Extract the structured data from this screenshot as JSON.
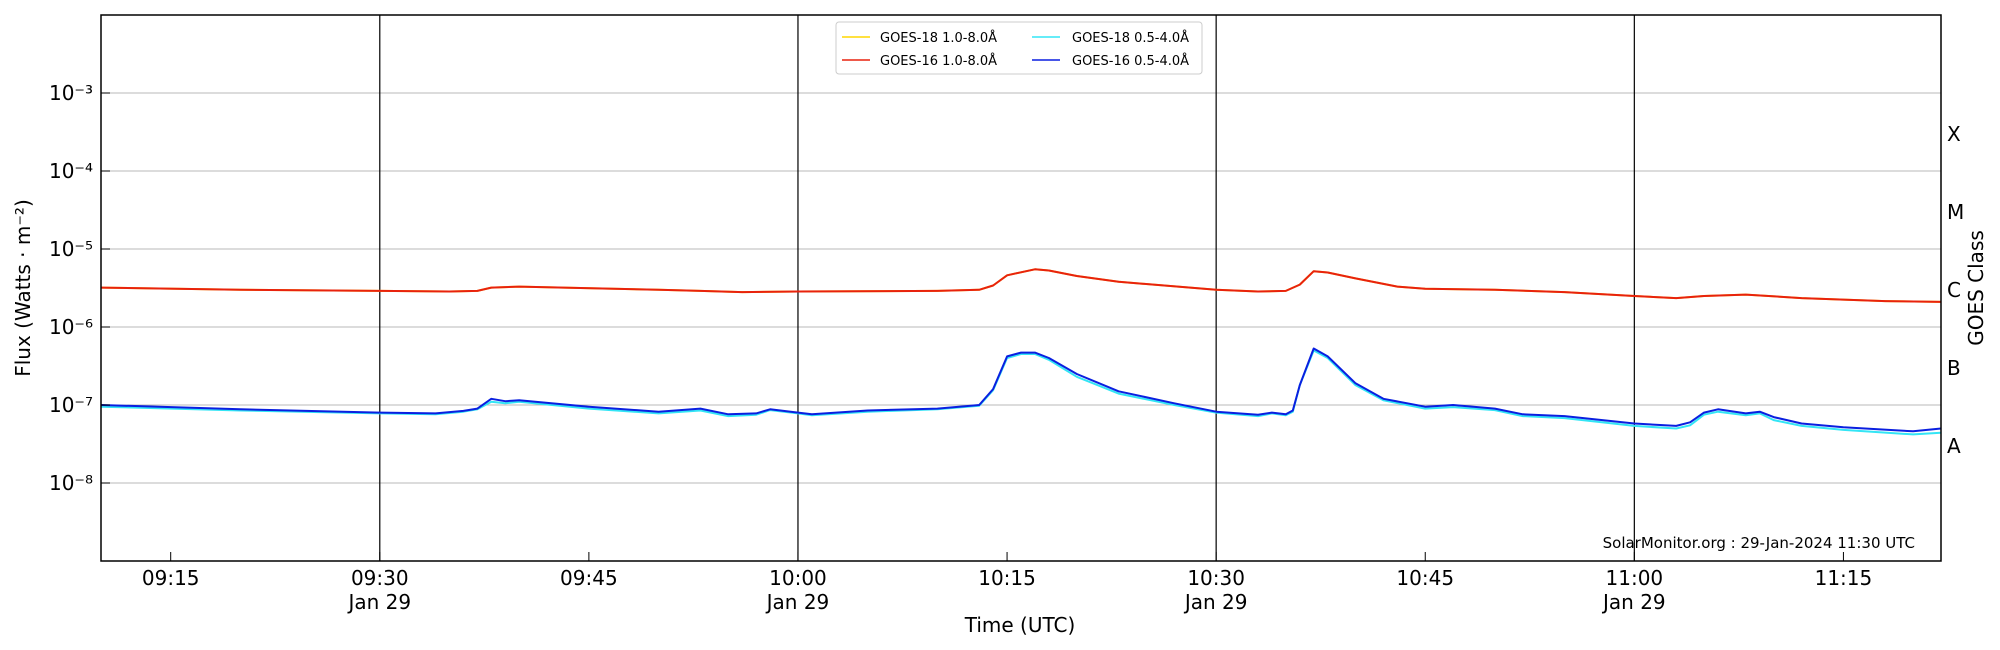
{
  "chart_data": {
    "type": "line",
    "xlabel": "Time (UTC)",
    "ylabel": "Flux (Watts · m⁻²)",
    "ylabel_right": "GOES Class",
    "y_scale": "log",
    "ylim": [
      1e-09,
      0.01
    ],
    "xlim": [
      "09:10",
      "11:22"
    ],
    "x_ticks": [
      {
        "t": "09:15",
        "label": "09:15",
        "sub": ""
      },
      {
        "t": "09:30",
        "label": "09:30",
        "sub": "Jan 29"
      },
      {
        "t": "09:45",
        "label": "09:45",
        "sub": ""
      },
      {
        "t": "10:00",
        "label": "10:00",
        "sub": "Jan 29"
      },
      {
        "t": "10:15",
        "label": "10:15",
        "sub": ""
      },
      {
        "t": "10:30",
        "label": "10:30",
        "sub": "Jan 29"
      },
      {
        "t": "10:45",
        "label": "10:45",
        "sub": ""
      },
      {
        "t": "11:00",
        "label": "11:00",
        "sub": "Jan 29"
      },
      {
        "t": "11:15",
        "label": "11:15",
        "sub": ""
      }
    ],
    "y_ticks": [
      {
        "exp": -3,
        "label": "10⁻³"
      },
      {
        "exp": -4,
        "label": "10⁻⁴"
      },
      {
        "exp": -5,
        "label": "10⁻⁵"
      },
      {
        "exp": -6,
        "label": "10⁻⁶"
      },
      {
        "exp": -7,
        "label": "10⁻⁷"
      },
      {
        "exp": -8,
        "label": "10⁻⁸"
      }
    ],
    "vertical_lines": [
      "09:30",
      "10:00",
      "10:30",
      "11:00"
    ],
    "goes_classes": [
      {
        "label": "X",
        "level": 0.0003
      },
      {
        "label": "M",
        "level": 3e-05
      },
      {
        "label": "C",
        "level": 3e-06
      },
      {
        "label": "B",
        "level": 3e-07
      },
      {
        "label": "A",
        "level": 3e-08
      }
    ],
    "legend": {
      "position": "top-center"
    },
    "series": [
      {
        "name": "GOES-18 1.0-8.0Å",
        "color": "#ffd700",
        "points": [
          [
            "09:10",
            3.2e-06
          ],
          [
            "09:20",
            3e-06
          ],
          [
            "09:30",
            2.9e-06
          ],
          [
            "09:35",
            2.85e-06
          ],
          [
            "09:37",
            2.9e-06
          ],
          [
            "09:38",
            3.2e-06
          ],
          [
            "09:40",
            3.3e-06
          ],
          [
            "09:50",
            3e-06
          ],
          [
            "09:53",
            2.9e-06
          ],
          [
            "09:56",
            2.8e-06
          ],
          [
            "10:00",
            2.85e-06
          ],
          [
            "10:10",
            2.9e-06
          ],
          [
            "10:13",
            3e-06
          ],
          [
            "10:14",
            3.4e-06
          ],
          [
            "10:15",
            4.6e-06
          ],
          [
            "10:17",
            5.5e-06
          ],
          [
            "10:18",
            5.3e-06
          ],
          [
            "10:20",
            4.5e-06
          ],
          [
            "10:23",
            3.8e-06
          ],
          [
            "10:30",
            3e-06
          ],
          [
            "10:33",
            2.85e-06
          ],
          [
            "10:35",
            2.9e-06
          ],
          [
            "10:36",
            3.5e-06
          ],
          [
            "10:37",
            5.2e-06
          ],
          [
            "10:38",
            5e-06
          ],
          [
            "10:40",
            4.2e-06
          ],
          [
            "10:43",
            3.3e-06
          ],
          [
            "10:45",
            3.1e-06
          ],
          [
            "10:50",
            3e-06
          ],
          [
            "10:55",
            2.8e-06
          ],
          [
            "11:00",
            2.5e-06
          ],
          [
            "11:03",
            2.35e-06
          ],
          [
            "11:05",
            2.5e-06
          ],
          [
            "11:08",
            2.6e-06
          ],
          [
            "11:12",
            2.35e-06
          ],
          [
            "11:18",
            2.15e-06
          ],
          [
            "11:22",
            2.1e-06
          ]
        ]
      },
      {
        "name": "GOES-16 1.0-8.0Å",
        "color": "#e8220e",
        "points": [
          [
            "09:10",
            3.2e-06
          ],
          [
            "09:20",
            3e-06
          ],
          [
            "09:30",
            2.9e-06
          ],
          [
            "09:35",
            2.85e-06
          ],
          [
            "09:37",
            2.9e-06
          ],
          [
            "09:38",
            3.2e-06
          ],
          [
            "09:40",
            3.3e-06
          ],
          [
            "09:50",
            3e-06
          ],
          [
            "09:53",
            2.9e-06
          ],
          [
            "09:56",
            2.8e-06
          ],
          [
            "10:00",
            2.85e-06
          ],
          [
            "10:10",
            2.9e-06
          ],
          [
            "10:13",
            3e-06
          ],
          [
            "10:14",
            3.4e-06
          ],
          [
            "10:15",
            4.6e-06
          ],
          [
            "10:17",
            5.5e-06
          ],
          [
            "10:18",
            5.3e-06
          ],
          [
            "10:20",
            4.5e-06
          ],
          [
            "10:23",
            3.8e-06
          ],
          [
            "10:30",
            3e-06
          ],
          [
            "10:33",
            2.85e-06
          ],
          [
            "10:35",
            2.9e-06
          ],
          [
            "10:36",
            3.5e-06
          ],
          [
            "10:37",
            5.2e-06
          ],
          [
            "10:38",
            5e-06
          ],
          [
            "10:40",
            4.2e-06
          ],
          [
            "10:43",
            3.3e-06
          ],
          [
            "10:45",
            3.1e-06
          ],
          [
            "10:50",
            3e-06
          ],
          [
            "10:55",
            2.8e-06
          ],
          [
            "11:00",
            2.5e-06
          ],
          [
            "11:03",
            2.35e-06
          ],
          [
            "11:05",
            2.5e-06
          ],
          [
            "11:08",
            2.6e-06
          ],
          [
            "11:12",
            2.35e-06
          ],
          [
            "11:18",
            2.15e-06
          ],
          [
            "11:22",
            2.1e-06
          ]
        ]
      },
      {
        "name": "GOES-18 0.5-4.0Å",
        "color": "#33e5f5",
        "points": [
          [
            "09:10",
            9.5e-08
          ],
          [
            "09:20",
            8.5e-08
          ],
          [
            "09:30",
            7.8e-08
          ],
          [
            "09:34",
            7.6e-08
          ],
          [
            "09:36",
            8.2e-08
          ],
          [
            "09:37",
            8.8e-08
          ],
          [
            "09:38",
            1.1e-07
          ],
          [
            "09:39",
            1.05e-07
          ],
          [
            "09:40",
            1.1e-07
          ],
          [
            "09:45",
            9e-08
          ],
          [
            "09:50",
            7.8e-08
          ],
          [
            "09:53",
            8.5e-08
          ],
          [
            "09:55",
            7.2e-08
          ],
          [
            "09:57",
            7.5e-08
          ],
          [
            "09:58",
            8.6e-08
          ],
          [
            "10:00",
            7.8e-08
          ],
          [
            "10:01",
            7.4e-08
          ],
          [
            "10:05",
            8.2e-08
          ],
          [
            "10:10",
            8.8e-08
          ],
          [
            "10:13",
            9.8e-08
          ],
          [
            "10:14",
            1.55e-07
          ],
          [
            "10:15",
            4e-07
          ],
          [
            "10:16",
            4.5e-07
          ],
          [
            "10:17",
            4.5e-07
          ],
          [
            "10:18",
            3.8e-07
          ],
          [
            "10:20",
            2.3e-07
          ],
          [
            "10:23",
            1.4e-07
          ],
          [
            "10:27",
            1e-07
          ],
          [
            "10:30",
            8e-08
          ],
          [
            "10:33",
            7.2e-08
          ],
          [
            "10:34",
            7.8e-08
          ],
          [
            "10:35",
            7.4e-08
          ],
          [
            "10:35.5",
            8.2e-08
          ],
          [
            "10:36",
            1.8e-07
          ],
          [
            "10:37",
            5e-07
          ],
          [
            "10:38",
            4e-07
          ],
          [
            "10:40",
            1.8e-07
          ],
          [
            "10:42",
            1.15e-07
          ],
          [
            "10:45",
            9e-08
          ],
          [
            "10:47",
            9.4e-08
          ],
          [
            "10:50",
            8.6e-08
          ],
          [
            "10:52",
            7.2e-08
          ],
          [
            "10:55",
            6.8e-08
          ],
          [
            "11:00",
            5.4e-08
          ],
          [
            "11:03",
            5e-08
          ],
          [
            "11:04",
            5.5e-08
          ],
          [
            "11:05",
            7.5e-08
          ],
          [
            "11:06",
            8.2e-08
          ],
          [
            "11:08",
            7.4e-08
          ],
          [
            "11:09",
            7.8e-08
          ],
          [
            "11:10",
            6.4e-08
          ],
          [
            "11:12",
            5.4e-08
          ],
          [
            "11:15",
            4.8e-08
          ],
          [
            "11:20",
            4.2e-08
          ],
          [
            "11:22",
            4.4e-08
          ]
        ]
      },
      {
        "name": "GOES-16 0.5-4.0Å",
        "color": "#0a1fe0",
        "points": [
          [
            "09:10",
            1e-07
          ],
          [
            "09:20",
            8.8e-08
          ],
          [
            "09:30",
            8e-08
          ],
          [
            "09:34",
            7.8e-08
          ],
          [
            "09:36",
            8.4e-08
          ],
          [
            "09:37",
            9e-08
          ],
          [
            "09:38",
            1.2e-07
          ],
          [
            "09:39",
            1.12e-07
          ],
          [
            "09:40",
            1.15e-07
          ],
          [
            "09:45",
            9.5e-08
          ],
          [
            "09:50",
            8.2e-08
          ],
          [
            "09:53",
            9e-08
          ],
          [
            "09:55",
            7.6e-08
          ],
          [
            "09:57",
            7.8e-08
          ],
          [
            "09:58",
            8.8e-08
          ],
          [
            "10:00",
            8e-08
          ],
          [
            "10:01",
            7.6e-08
          ],
          [
            "10:05",
            8.5e-08
          ],
          [
            "10:10",
            9e-08
          ],
          [
            "10:13",
            1e-07
          ],
          [
            "10:14",
            1.6e-07
          ],
          [
            "10:15",
            4.2e-07
          ],
          [
            "10:16",
            4.7e-07
          ],
          [
            "10:17",
            4.7e-07
          ],
          [
            "10:18",
            4e-07
          ],
          [
            "10:20",
            2.5e-07
          ],
          [
            "10:23",
            1.5e-07
          ],
          [
            "10:27",
            1.05e-07
          ],
          [
            "10:30",
            8.2e-08
          ],
          [
            "10:33",
            7.5e-08
          ],
          [
            "10:34",
            8e-08
          ],
          [
            "10:35",
            7.6e-08
          ],
          [
            "10:35.5",
            8.5e-08
          ],
          [
            "10:36",
            1.8e-07
          ],
          [
            "10:37",
            5.3e-07
          ],
          [
            "10:38",
            4.2e-07
          ],
          [
            "10:40",
            1.9e-07
          ],
          [
            "10:42",
            1.2e-07
          ],
          [
            "10:45",
            9.5e-08
          ],
          [
            "10:47",
            1e-07
          ],
          [
            "10:50",
            9e-08
          ],
          [
            "10:52",
            7.6e-08
          ],
          [
            "10:55",
            7.2e-08
          ],
          [
            "11:00",
            5.8e-08
          ],
          [
            "11:03",
            5.4e-08
          ],
          [
            "11:04",
            6e-08
          ],
          [
            "11:05",
            8e-08
          ],
          [
            "11:06",
            8.8e-08
          ],
          [
            "11:08",
            7.8e-08
          ],
          [
            "11:09",
            8.2e-08
          ],
          [
            "11:10",
            7e-08
          ],
          [
            "11:12",
            5.8e-08
          ],
          [
            "11:15",
            5.2e-08
          ],
          [
            "11:20",
            4.6e-08
          ],
          [
            "11:22",
            5e-08
          ]
        ]
      }
    ],
    "annotation": "SolarMonitor.org : 29-Jan-2024 11:30 UTC"
  }
}
